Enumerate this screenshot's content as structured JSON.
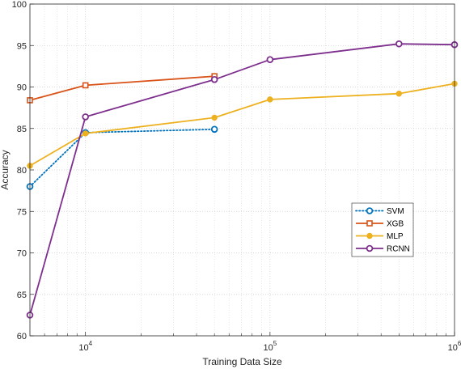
{
  "chart_data": {
    "type": "line",
    "title": "",
    "xlabel": "Training Data Size",
    "ylabel": "Accuracy",
    "xscale": "log",
    "xlim": [
      5000,
      1000000
    ],
    "ylim": [
      60,
      100
    ],
    "y_ticks": [
      "60",
      "65",
      "70",
      "75",
      "80",
      "85",
      "90",
      "95",
      "100"
    ],
    "x_ticks": [
      {
        "value": 10000,
        "base": "10",
        "exp": "4"
      },
      {
        "value": 100000,
        "base": "10",
        "exp": "5"
      },
      {
        "value": 1000000,
        "base": "10",
        "exp": "6"
      }
    ],
    "grid": true,
    "minor_grid": true,
    "legend_position": "right",
    "series": [
      {
        "name": "SVM",
        "color": "#0072BD",
        "linestyle": "dotted",
        "marker": "circle",
        "x": [
          5000,
          10000,
          50000
        ],
        "y": [
          78.0,
          84.5,
          84.9
        ]
      },
      {
        "name": "XGB",
        "color": "#D95319",
        "linestyle": "solid",
        "marker": "square",
        "x": [
          5000,
          10000,
          50000
        ],
        "y": [
          88.4,
          90.2,
          91.3
        ]
      },
      {
        "name": "MLP",
        "color": "#EDB120",
        "linestyle": "solid",
        "marker": "dot",
        "x": [
          5000,
          10000,
          50000,
          100000,
          500000,
          1000000
        ],
        "y": [
          80.5,
          84.4,
          86.3,
          88.5,
          89.2,
          90.4
        ]
      },
      {
        "name": "RCNN",
        "color": "#7E2F8E",
        "linestyle": "solid",
        "marker": "circle",
        "x": [
          5000,
          10000,
          50000,
          100000,
          500000,
          1000000
        ],
        "y": [
          62.5,
          86.4,
          90.9,
          93.3,
          95.2,
          95.1
        ]
      }
    ]
  }
}
